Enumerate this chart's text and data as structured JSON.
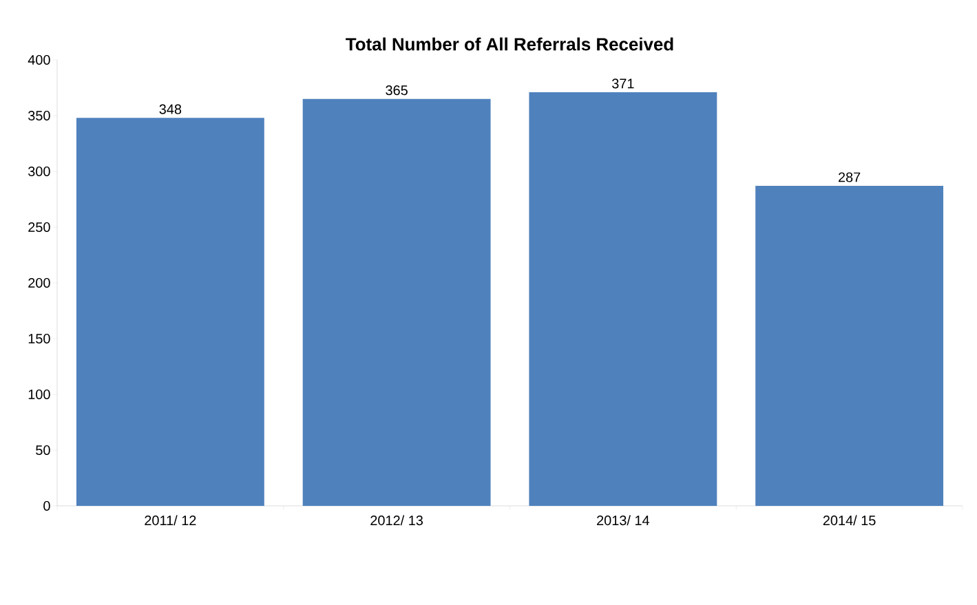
{
  "chart_data": {
    "type": "bar",
    "title": "Total Number of All Referrals Received",
    "categories": [
      "2011/ 12",
      "2012/ 13",
      "2013/ 14",
      "2014/ 15"
    ],
    "values": [
      348,
      365,
      371,
      287
    ],
    "color": "#4f81bd",
    "ylim": [
      0,
      400
    ],
    "yticks": [
      0,
      50,
      100,
      150,
      200,
      250,
      300,
      350,
      400
    ],
    "data_labels": true
  }
}
